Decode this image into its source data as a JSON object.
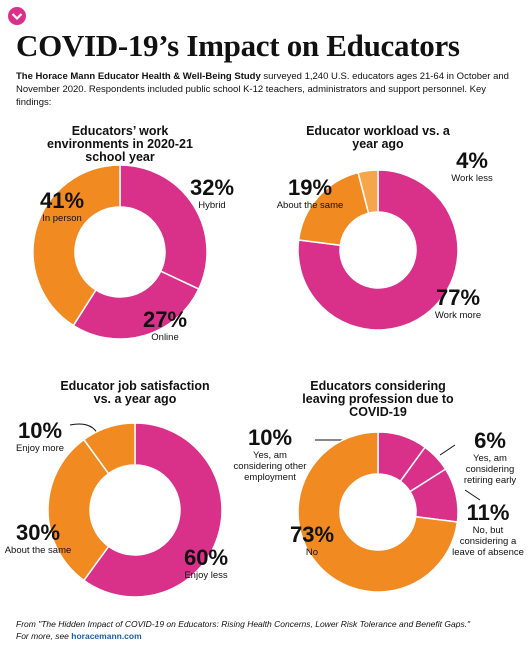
{
  "header": {
    "title": "COVID-19’s Impact on Educators",
    "intro_bold": "The Horace Mann Educator Health & Well-Being Study",
    "intro": "surveyed 1,240 U.S. educators ages 21-64 in October and November 2020. Respondents included public school K-12 teachers, administrators and support personnel. Key findings:"
  },
  "chart_data": [
    {
      "type": "donut",
      "title": "Educators’ work environments in 2020-21 school year",
      "categories": [
        "Hybrid",
        "Online",
        "In person"
      ],
      "values": [
        32,
        27,
        41
      ],
      "value_labels": [
        "32%",
        "27%",
        "41%"
      ],
      "colors": [
        "#d9308a",
        "#d9308a",
        "#f28a22"
      ]
    },
    {
      "type": "donut",
      "title": "Educator workload vs. a year ago",
      "categories": [
        "Work more",
        "About the same",
        "Work less"
      ],
      "values": [
        77,
        19,
        4
      ],
      "value_labels": [
        "77%",
        "19%",
        "4%"
      ],
      "colors": [
        "#d9308a",
        "#f28a22",
        "#f6a54a"
      ]
    },
    {
      "type": "donut",
      "title": "Educator job satisfaction vs. a year ago",
      "categories": [
        "Enjoy less",
        "About the same",
        "Enjoy more"
      ],
      "values": [
        60,
        30,
        10
      ],
      "value_labels": [
        "60%",
        "30%",
        "10%"
      ],
      "colors": [
        "#d9308a",
        "#f28a22",
        "#f28a22"
      ]
    },
    {
      "type": "donut",
      "title": "Educators considering leaving profession due to COVID-19",
      "categories": [
        "Yes, am considering other employment",
        "Yes, am considering retiring early",
        "No, but considering a leave of absence",
        "No"
      ],
      "values": [
        10,
        6,
        11,
        73
      ],
      "value_labels": [
        "10%",
        "6%",
        "11%",
        "73%"
      ],
      "colors": [
        "#d9308a",
        "#d9308a",
        "#d9308a",
        "#f28a22"
      ]
    }
  ],
  "footer": {
    "source": "From \"The Hidden Impact of COVID-19 on Educators: Rising Health Concerns, Lower Risk Tolerance and Benefit Gaps.\"",
    "more": "For more, see",
    "link": "horacemann.com"
  }
}
